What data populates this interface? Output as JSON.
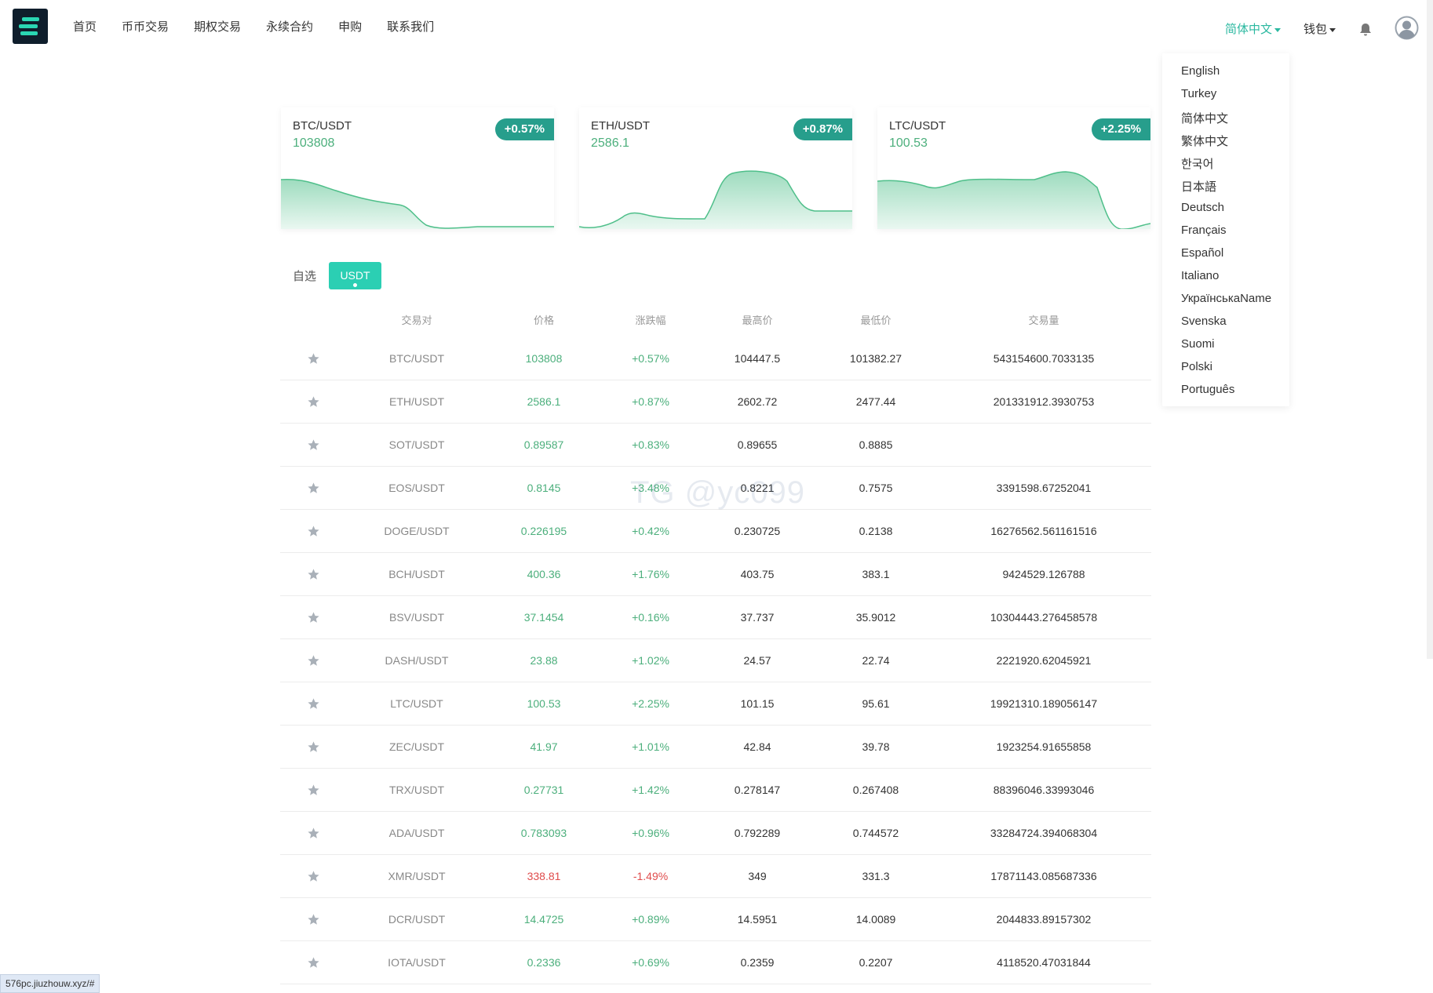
{
  "nav": {
    "items": [
      "首页",
      "币币交易",
      "期权交易",
      "永续合约",
      "申购",
      "联系我们"
    ],
    "language": "简体中文",
    "wallet": "钱包"
  },
  "language_menu": [
    "English",
    "Turkey",
    "简体中文",
    "繁体中文",
    "한국어",
    "日本語",
    "Deutsch",
    "Français",
    "Español",
    "Italiano",
    "УкраїнськаName",
    "Svenska",
    "Suomi",
    "Polski",
    "Português"
  ],
  "cards": [
    {
      "pair": "BTC/USDT",
      "price": "103808",
      "change": "+0.57%"
    },
    {
      "pair": "ETH/USDT",
      "price": "2586.1",
      "change": "+0.87%"
    },
    {
      "pair": "LTC/USDT",
      "price": "100.53",
      "change": "+2.25%"
    }
  ],
  "tabs": {
    "favorites": "自选",
    "usdt": "USDT"
  },
  "table": {
    "headers": [
      "交易对",
      "价格",
      "涨跌幅",
      "最高价",
      "最低价",
      "交易量"
    ],
    "rows": [
      {
        "pair": "BTC/USDT",
        "price": "103808",
        "change": "+0.57%",
        "high": "104447.5",
        "low": "101382.27",
        "volume": "543154600.7033135",
        "dir": "up"
      },
      {
        "pair": "ETH/USDT",
        "price": "2586.1",
        "change": "+0.87%",
        "high": "2602.72",
        "low": "2477.44",
        "volume": "201331912.3930753",
        "dir": "up"
      },
      {
        "pair": "SOT/USDT",
        "price": "0.89587",
        "change": "+0.83%",
        "high": "0.89655",
        "low": "0.8885",
        "volume": "",
        "dir": "up"
      },
      {
        "pair": "EOS/USDT",
        "price": "0.8145",
        "change": "+3.48%",
        "high": "0.8221",
        "low": "0.7575",
        "volume": "3391598.67252041",
        "dir": "up"
      },
      {
        "pair": "DOGE/USDT",
        "price": "0.226195",
        "change": "+0.42%",
        "high": "0.230725",
        "low": "0.2138",
        "volume": "16276562.561161516",
        "dir": "up"
      },
      {
        "pair": "BCH/USDT",
        "price": "400.36",
        "change": "+1.76%",
        "high": "403.75",
        "low": "383.1",
        "volume": "9424529.126788",
        "dir": "up"
      },
      {
        "pair": "BSV/USDT",
        "price": "37.1454",
        "change": "+0.16%",
        "high": "37.737",
        "low": "35.9012",
        "volume": "10304443.276458578",
        "dir": "up"
      },
      {
        "pair": "DASH/USDT",
        "price": "23.88",
        "change": "+1.02%",
        "high": "24.57",
        "low": "22.74",
        "volume": "2221920.62045921",
        "dir": "up"
      },
      {
        "pair": "LTC/USDT",
        "price": "100.53",
        "change": "+2.25%",
        "high": "101.15",
        "low": "95.61",
        "volume": "19921310.189056147",
        "dir": "up"
      },
      {
        "pair": "ZEC/USDT",
        "price": "41.97",
        "change": "+1.01%",
        "high": "42.84",
        "low": "39.78",
        "volume": "1923254.91655858",
        "dir": "up"
      },
      {
        "pair": "TRX/USDT",
        "price": "0.27731",
        "change": "+1.42%",
        "high": "0.278147",
        "low": "0.267408",
        "volume": "88396046.33993046",
        "dir": "up"
      },
      {
        "pair": "ADA/USDT",
        "price": "0.783093",
        "change": "+0.96%",
        "high": "0.792289",
        "low": "0.744572",
        "volume": "33284724.394068304",
        "dir": "up"
      },
      {
        "pair": "XMR/USDT",
        "price": "338.81",
        "change": "-1.49%",
        "high": "349",
        "low": "331.3",
        "volume": "17871143.085687336",
        "dir": "down"
      },
      {
        "pair": "DCR/USDT",
        "price": "14.4725",
        "change": "+0.89%",
        "high": "14.5951",
        "low": "14.0089",
        "volume": "2044833.89157302",
        "dir": "up"
      },
      {
        "pair": "IOTA/USDT",
        "price": "0.2336",
        "change": "+0.69%",
        "high": "0.2359",
        "low": "0.2207",
        "volume": "4118520.47031844",
        "dir": "up"
      }
    ]
  },
  "watermark": "TG @yc099",
  "status_url": "576pc.jiuzhouw.xyz/#",
  "colors": {
    "accent": "#2bcfb3",
    "up": "#4caf7c",
    "down": "#e04c4c",
    "badge": "#279e8c"
  }
}
